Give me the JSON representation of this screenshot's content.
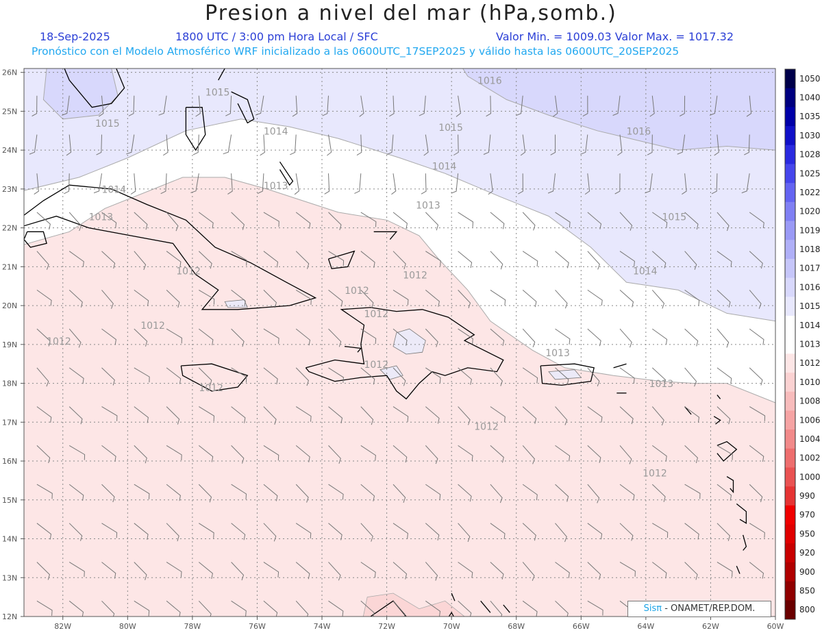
{
  "header": {
    "title": "Presion a nivel del mar (hPa,somb.)",
    "date": "18-Sep-2025",
    "time_info": "1800 UTC / 3:00 pm Hora Local / SFC",
    "min_max": "Valor Min. = 1009.03  Valor Max. = 1017.32",
    "forecast_info": "Pronóstico con el Modelo Atmosférico WRF inicializado a las 0600UTC_17SEP2025 y válido hasta las  0600UTC_20SEP2025"
  },
  "map": {
    "lat_labels": [
      "26N",
      "25N",
      "24N",
      "23N",
      "22N",
      "21N",
      "20N",
      "19N",
      "18N",
      "17N",
      "16N",
      "15N",
      "14N",
      "13N",
      "12N"
    ],
    "lon_labels": [
      "82W",
      "80W",
      "78W",
      "76W",
      "74W",
      "72W",
      "70W",
      "68W",
      "66W",
      "64W",
      "62W",
      "60W"
    ],
    "contour_labels": [
      {
        "text": "1016",
        "lon": -69.2,
        "lat": 25.7
      },
      {
        "text": "1016",
        "lon": -64.6,
        "lat": 24.4
      },
      {
        "text": "1015",
        "lon": -77.6,
        "lat": 25.4
      },
      {
        "text": "1015",
        "lon": -81.0,
        "lat": 24.6
      },
      {
        "text": "1015",
        "lon": -70.4,
        "lat": 24.5
      },
      {
        "text": "1015",
        "lon": -63.5,
        "lat": 22.2
      },
      {
        "text": "1014",
        "lon": -75.8,
        "lat": 24.4
      },
      {
        "text": "1014",
        "lon": -80.8,
        "lat": 22.9
      },
      {
        "text": "1014",
        "lon": -70.6,
        "lat": 23.5
      },
      {
        "text": "1014",
        "lon": -64.4,
        "lat": 20.8
      },
      {
        "text": "1013",
        "lon": -75.8,
        "lat": 23.0
      },
      {
        "text": "1013",
        "lon": -81.2,
        "lat": 22.2
      },
      {
        "text": "1013",
        "lon": -71.1,
        "lat": 22.5
      },
      {
        "text": "1013",
        "lon": -67.1,
        "lat": 18.7
      },
      {
        "text": "1013",
        "lon": -63.9,
        "lat": 17.9
      },
      {
        "text": "1012",
        "lon": -78.5,
        "lat": 20.8
      },
      {
        "text": "1012",
        "lon": -71.5,
        "lat": 20.7
      },
      {
        "text": "1012",
        "lon": -73.3,
        "lat": 20.3
      },
      {
        "text": "1012",
        "lon": -72.7,
        "lat": 19.7
      },
      {
        "text": "1012",
        "lon": -79.6,
        "lat": 19.4
      },
      {
        "text": "1012",
        "lon": -82.5,
        "lat": 19.0
      },
      {
        "text": "1012",
        "lon": -72.7,
        "lat": 18.4
      },
      {
        "text": "1012",
        "lon": -69.3,
        "lat": 16.8
      },
      {
        "text": "1012",
        "lon": -64.1,
        "lat": 15.6
      },
      {
        "text": "1012",
        "lon": -77.8,
        "lat": 17.8
      }
    ]
  },
  "colorbar": {
    "labels": [
      "1050",
      "1040",
      "1035",
      "1030",
      "1028",
      "1025",
      "1022",
      "1020",
      "1019",
      "1018",
      "1017",
      "1016",
      "1015",
      "1014",
      "1013",
      "1012",
      "1010",
      "1008",
      "1006",
      "1004",
      "1002",
      "1000",
      "990",
      "970",
      "950",
      "920",
      "900",
      "850",
      "800"
    ],
    "colors": [
      "#00004a",
      "#000080",
      "#0000a8",
      "#1010c8",
      "#2a2ae0",
      "#4646ec",
      "#6464f2",
      "#8080f4",
      "#9a9af6",
      "#b0b0f8",
      "#c6c6fa",
      "#d8d8fc",
      "#e8e8fd",
      "#ffffff",
      "#ffffff",
      "#fde6e6",
      "#fbd2d2",
      "#f8bcbc",
      "#f6a4a4",
      "#f28a8a",
      "#ee6e6e",
      "#ea5252",
      "#e63434",
      "#f00000",
      "#e00000",
      "#c80000",
      "#b00000",
      "#900000",
      "#6a0000"
    ]
  },
  "footer": {
    "brand": "Sisπ",
    "org": "- ONAMET/REP.DOM."
  }
}
